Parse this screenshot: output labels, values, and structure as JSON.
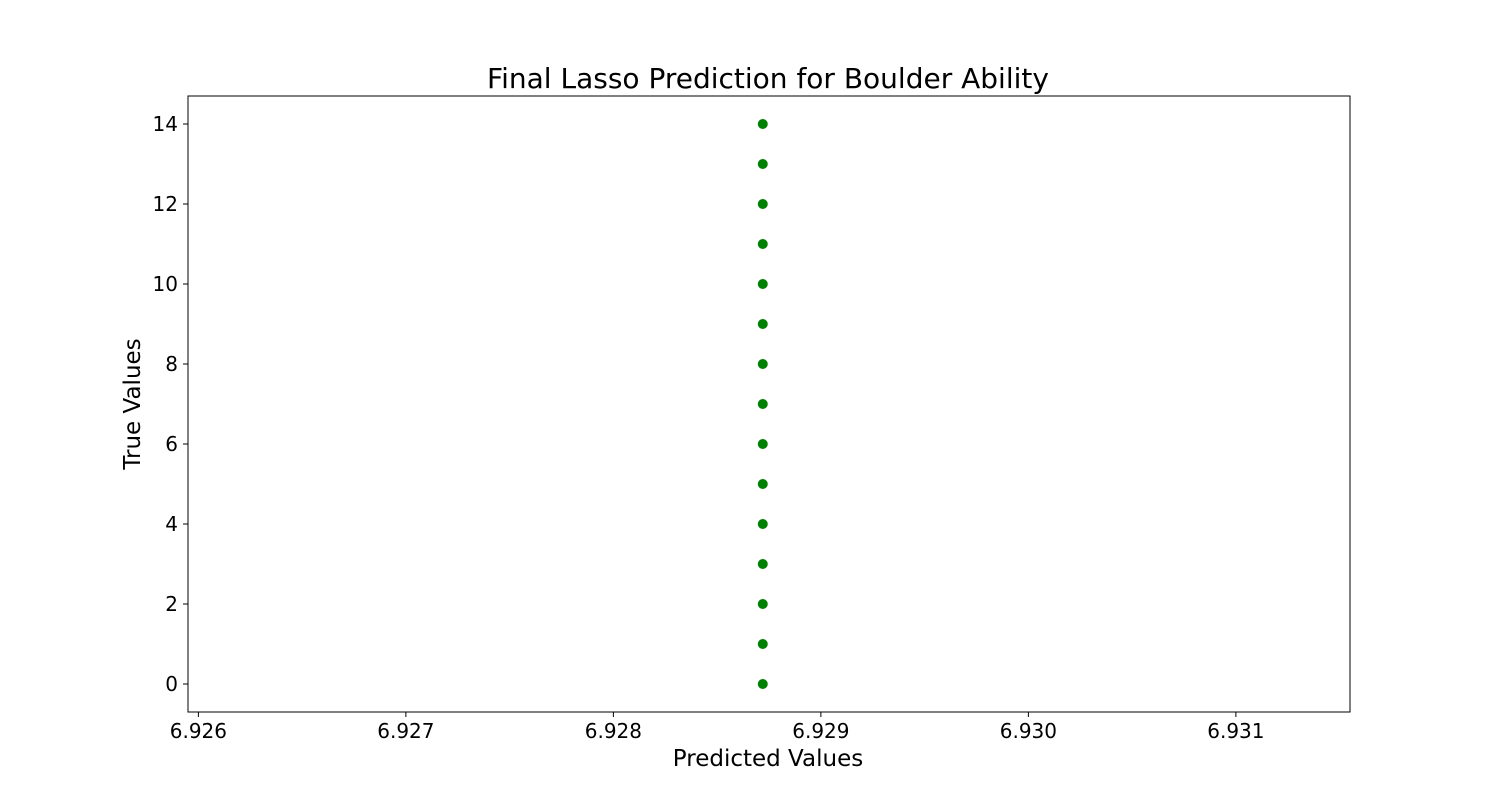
{
  "chart_data": {
    "type": "scatter",
    "title": "Final Lasso Prediction for Boulder Ability",
    "xlabel": "Predicted Values",
    "ylabel": "True Values",
    "xlim": [
      6.92595,
      6.93155
    ],
    "ylim": [
      -0.7,
      14.7
    ],
    "x_ticks": [
      "6.926",
      "6.927",
      "6.928",
      "6.929",
      "6.930",
      "6.931"
    ],
    "x_tick_values": [
      6.926,
      6.927,
      6.928,
      6.929,
      6.93,
      6.931
    ],
    "y_ticks": [
      "0",
      "2",
      "4",
      "6",
      "8",
      "10",
      "12",
      "14"
    ],
    "y_tick_values": [
      0,
      2,
      4,
      6,
      8,
      10,
      12,
      14
    ],
    "grid": false,
    "marker_color": "#008000",
    "points": [
      {
        "x": 6.92872,
        "y": 0
      },
      {
        "x": 6.92872,
        "y": 1
      },
      {
        "x": 6.92872,
        "y": 2
      },
      {
        "x": 6.92872,
        "y": 3
      },
      {
        "x": 6.92872,
        "y": 4
      },
      {
        "x": 6.92872,
        "y": 5
      },
      {
        "x": 6.92872,
        "y": 6
      },
      {
        "x": 6.92872,
        "y": 7
      },
      {
        "x": 6.92872,
        "y": 8
      },
      {
        "x": 6.92872,
        "y": 9
      },
      {
        "x": 6.92872,
        "y": 10
      },
      {
        "x": 6.92872,
        "y": 11
      },
      {
        "x": 6.92872,
        "y": 12
      },
      {
        "x": 6.92872,
        "y": 13
      },
      {
        "x": 6.92872,
        "y": 14
      }
    ]
  }
}
